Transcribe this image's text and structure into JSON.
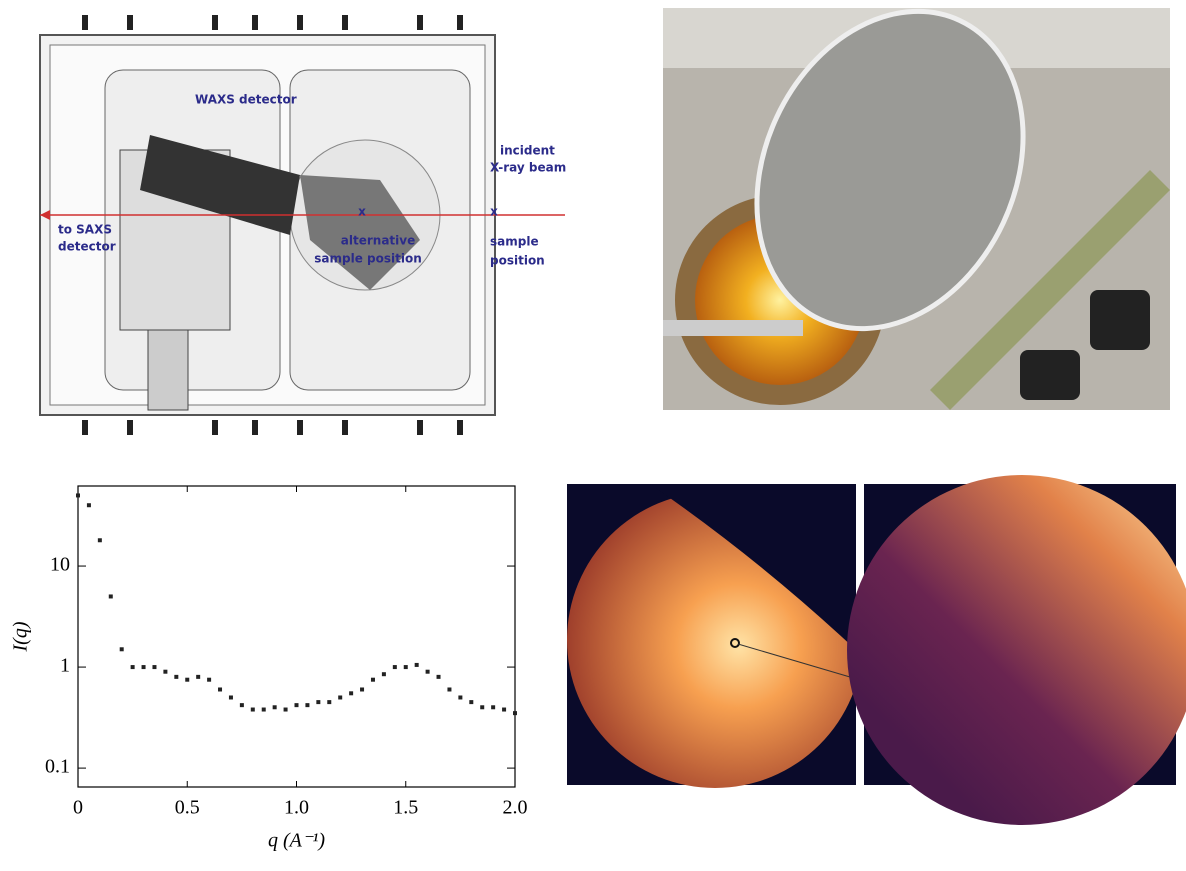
{
  "diagram": {
    "labels": [
      "WAXS detector",
      "incident",
      "X-ray beam",
      "to SAXS",
      "detector",
      "alternative",
      "sample position",
      "sample",
      "position",
      "x",
      "x"
    ]
  },
  "chart_data": {
    "type": "scatter",
    "x_label": "q (A⁻¹)",
    "y_label": "I(q)",
    "log_y": true,
    "color": "#222222",
    "x": [
      0,
      0.05,
      0.1,
      0.15,
      0.2,
      0.25,
      0.3,
      0.35,
      0.4,
      0.45,
      0.5,
      0.55,
      0.6,
      0.65,
      0.7,
      0.75,
      0.8,
      0.85,
      0.9,
      0.95,
      1.0,
      1.05,
      1.1,
      1.15,
      1.2,
      1.25,
      1.3,
      1.35,
      1.4,
      1.45,
      1.5,
      1.55,
      1.6,
      1.65,
      1.7,
      1.75,
      1.8,
      1.85,
      1.9,
      1.95,
      2.0
    ],
    "values": [
      50,
      40,
      18,
      5,
      1.5,
      1.0,
      1.0,
      1.0,
      0.9,
      0.8,
      0.75,
      0.8,
      0.75,
      0.6,
      0.5,
      0.42,
      0.38,
      0.38,
      0.4,
      0.38,
      0.42,
      0.42,
      0.45,
      0.45,
      0.5,
      0.55,
      0.6,
      0.75,
      0.85,
      1.0,
      1.0,
      1.05,
      0.9,
      0.8,
      0.6,
      0.5,
      0.45,
      0.4,
      0.4,
      0.38,
      0.35
    ],
    "xlim": [
      0,
      2.0
    ],
    "ylim": [
      0.065,
      62
    ],
    "xticks": [
      0,
      0.5,
      {
        "value": 1.0,
        "label": "1.0"
      },
      1.5,
      {
        "value": 2.0,
        "label": "2.0"
      }
    ],
    "yticks": [
      0.1,
      1,
      10
    ]
  }
}
